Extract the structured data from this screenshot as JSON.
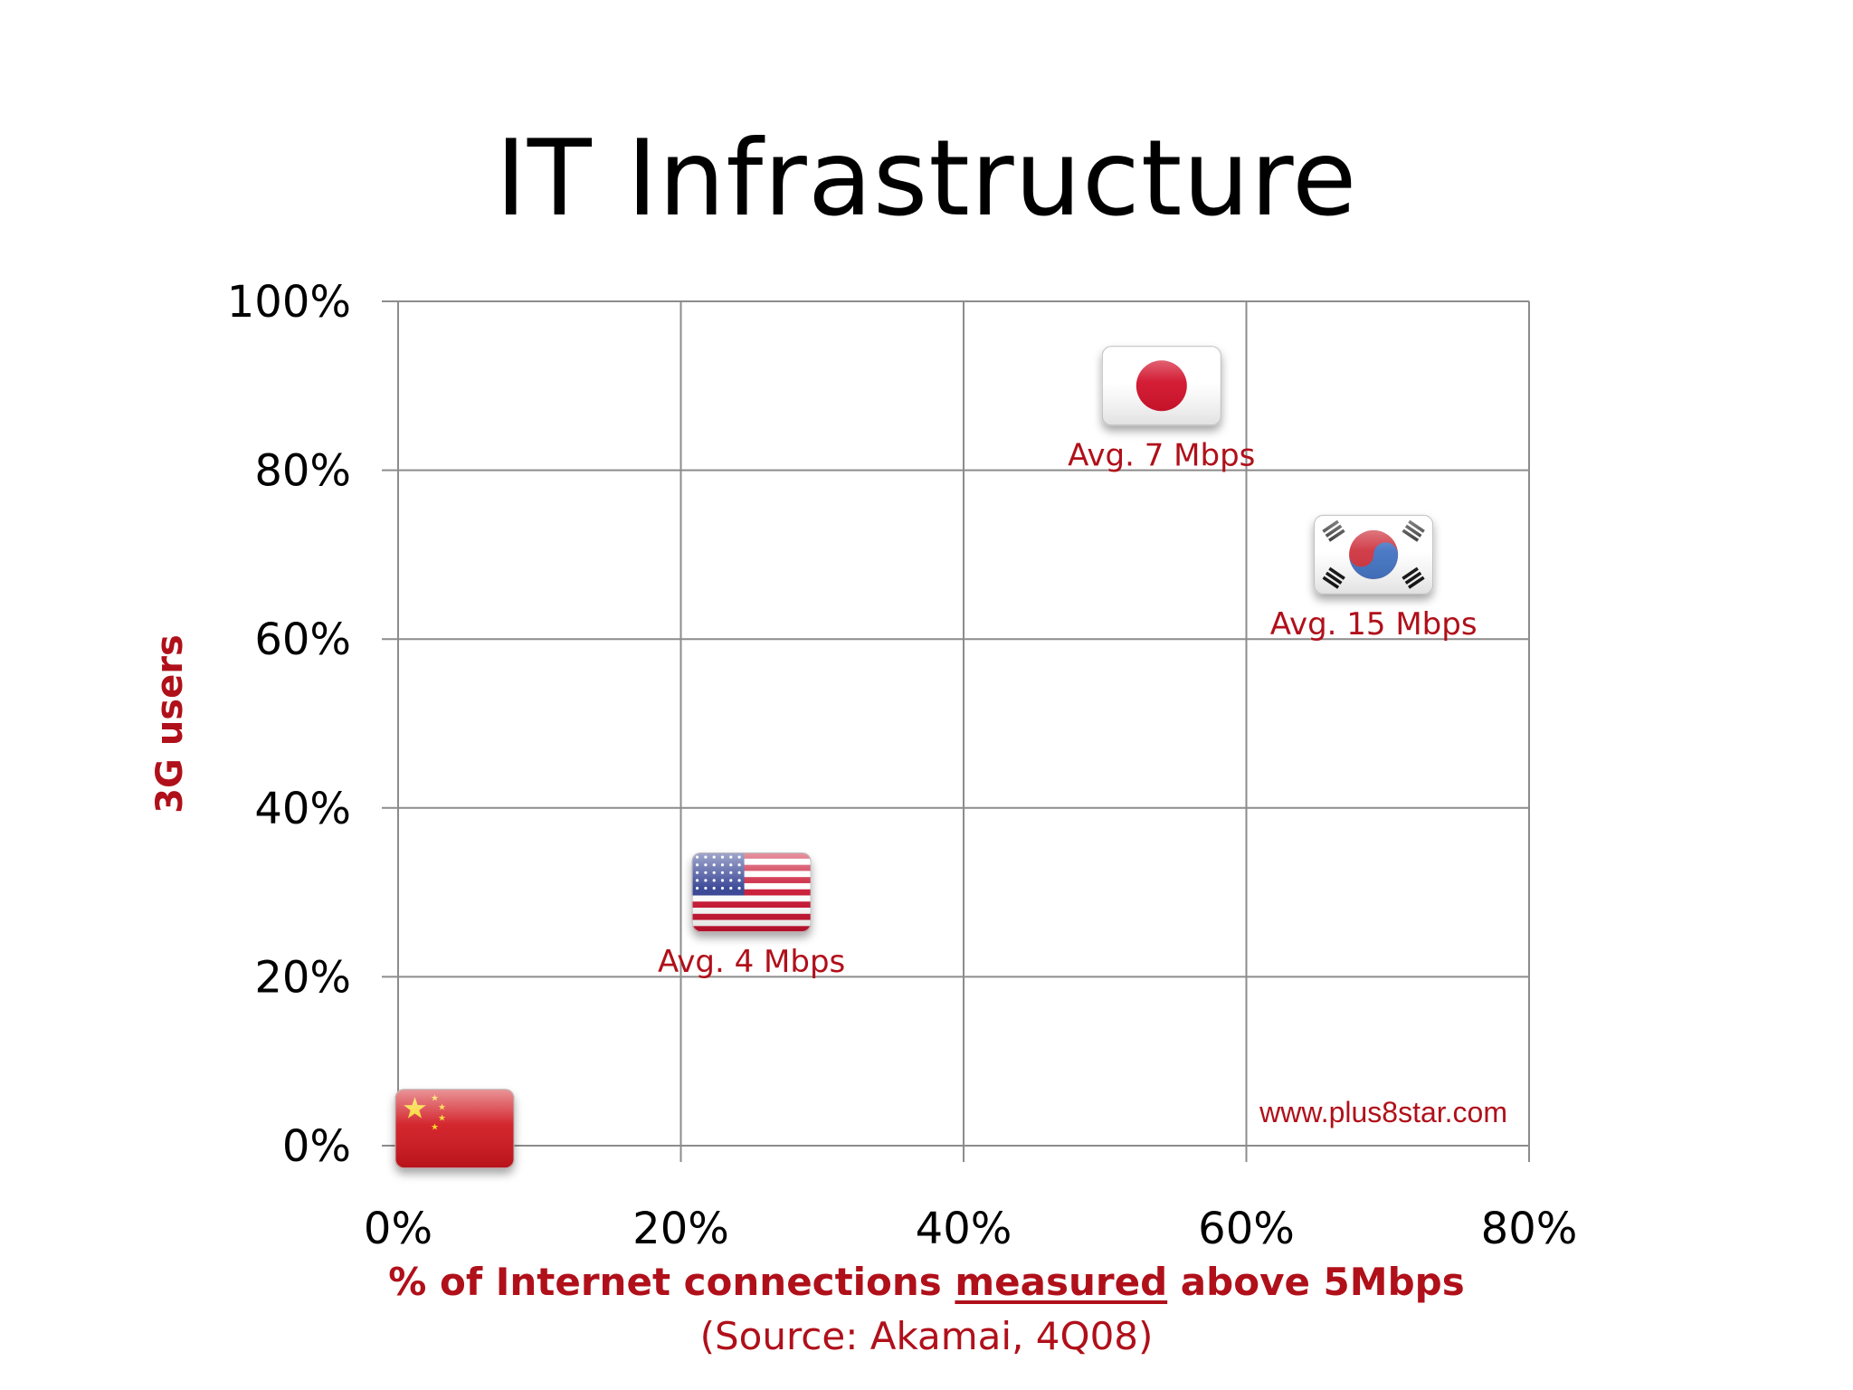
{
  "title": "IT Infrastructure",
  "chart_data": {
    "type": "scatter",
    "title": "IT Infrastructure",
    "ylabel": "3G users",
    "xlabel_parts": [
      "% of Internet connections ",
      "measured",
      " above 5Mbps"
    ],
    "source": "(Source: Akamai, 4Q08)",
    "watermark": "www.plus8star.com",
    "xlim": [
      0,
      80
    ],
    "ylim": [
      0,
      100
    ],
    "x_ticks": [
      0,
      20,
      40,
      60,
      80
    ],
    "y_ticks": [
      0,
      20,
      40,
      60,
      80,
      100
    ],
    "x_tick_labels": [
      "0%",
      "20%",
      "40%",
      "60%",
      "80%"
    ],
    "y_tick_labels": [
      "0%",
      "20%",
      "40%",
      "60%",
      "80%",
      "100%"
    ],
    "grid": true,
    "points": [
      {
        "country": "China",
        "flag": "china-flag-icon",
        "x": 4,
        "y": 2,
        "label": ""
      },
      {
        "country": "United States",
        "flag": "usa-flag-icon",
        "x": 25,
        "y": 30,
        "label": "Avg. 4 Mbps"
      },
      {
        "country": "Japan",
        "flag": "japan-flag-icon",
        "x": 54,
        "y": 90,
        "label": "Avg. 7 Mbps"
      },
      {
        "country": "South Korea",
        "flag": "korea-flag-icon",
        "x": 69,
        "y": 70,
        "label": "Avg. 15 Mbps"
      }
    ],
    "colors": {
      "accent": "#b0101a",
      "grid": "#8c8c8c"
    }
  }
}
